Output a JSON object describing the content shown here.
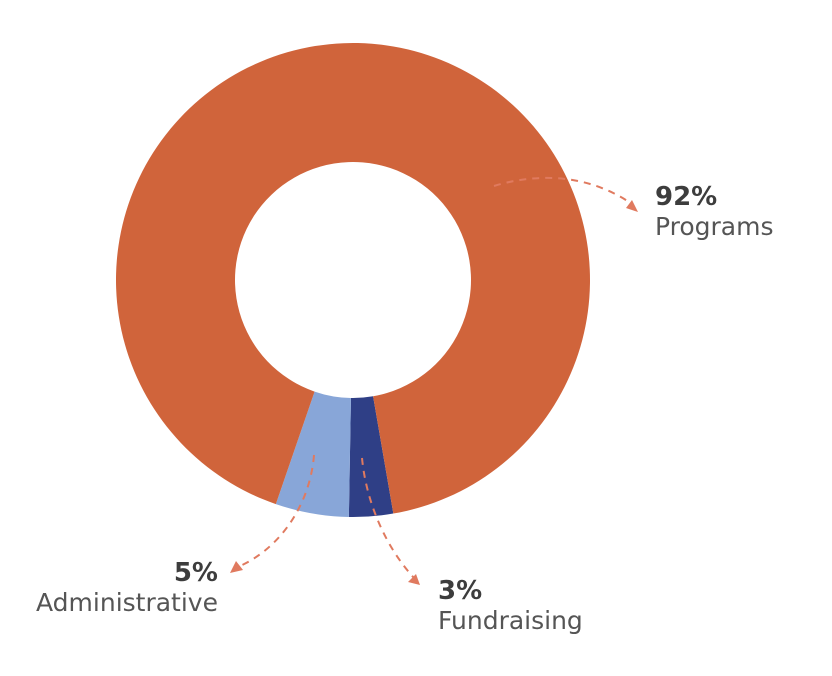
{
  "chart_data": {
    "type": "pie",
    "title": "",
    "slices": [
      {
        "label": "Programs",
        "value": 92,
        "value_label": "92%",
        "color": "#d0643b"
      },
      {
        "label": "Fundraising",
        "value": 3,
        "value_label": "3%",
        "color": "#2f3f86"
      },
      {
        "label": "Administrative",
        "value": 5,
        "value_label": "5%",
        "color": "#88a6d8"
      }
    ],
    "donut": true,
    "callout_color": "#e07a5f",
    "legend": "none"
  }
}
